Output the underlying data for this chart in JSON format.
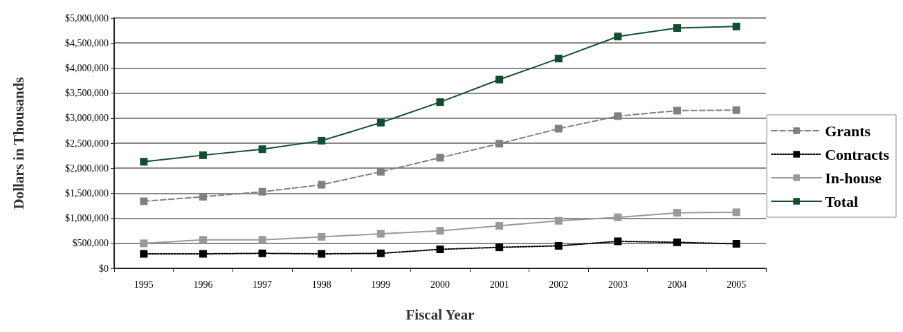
{
  "chart_data": {
    "type": "line",
    "xlabel": "Fiscal Year",
    "ylabel": "Dollars in Thousands",
    "categories": [
      "1995",
      "1996",
      "1997",
      "1998",
      "1999",
      "2000",
      "2001",
      "2002",
      "2003",
      "2004",
      "2005"
    ],
    "series": [
      {
        "name": "Grants",
        "color": "#808080",
        "line_style": "dashed",
        "values": [
          1340000,
          1430000,
          1530000,
          1670000,
          1930000,
          2210000,
          2490000,
          2790000,
          3040000,
          3150000,
          3160000
        ]
      },
      {
        "name": "Contracts",
        "color": "#000000",
        "line_style": "dotted",
        "values": [
          290000,
          290000,
          300000,
          290000,
          300000,
          380000,
          420000,
          450000,
          540000,
          520000,
          490000
        ]
      },
      {
        "name": "In-house",
        "color": "#999999",
        "line_style": "solid",
        "values": [
          500000,
          570000,
          570000,
          630000,
          690000,
          750000,
          850000,
          950000,
          1020000,
          1110000,
          1120000
        ]
      },
      {
        "name": "Total",
        "color": "#0f4f2d",
        "line_style": "solid",
        "values": [
          2130000,
          2260000,
          2380000,
          2550000,
          2910000,
          3320000,
          3770000,
          4190000,
          4630000,
          4800000,
          4830000
        ]
      }
    ],
    "ylim": [
      0,
      5000000
    ],
    "yticks": [
      {
        "value": 0,
        "label": "$0"
      },
      {
        "value": 500000,
        "label": "$500,000"
      },
      {
        "value": 1000000,
        "label": "$1,000,000"
      },
      {
        "value": 1500000,
        "label": "$1,500,000"
      },
      {
        "value": 2000000,
        "label": "$2,000,000"
      },
      {
        "value": 2500000,
        "label": "$2,500,000"
      },
      {
        "value": 3000000,
        "label": "$3,000,000"
      },
      {
        "value": 3500000,
        "label": "$3,500,000"
      },
      {
        "value": 4000000,
        "label": "$4,000,000"
      },
      {
        "value": 4500000,
        "label": "$4,500,000"
      },
      {
        "value": 5000000,
        "label": "$5,000,000"
      }
    ],
    "grid": "y",
    "legend": "right",
    "marker": "square"
  }
}
